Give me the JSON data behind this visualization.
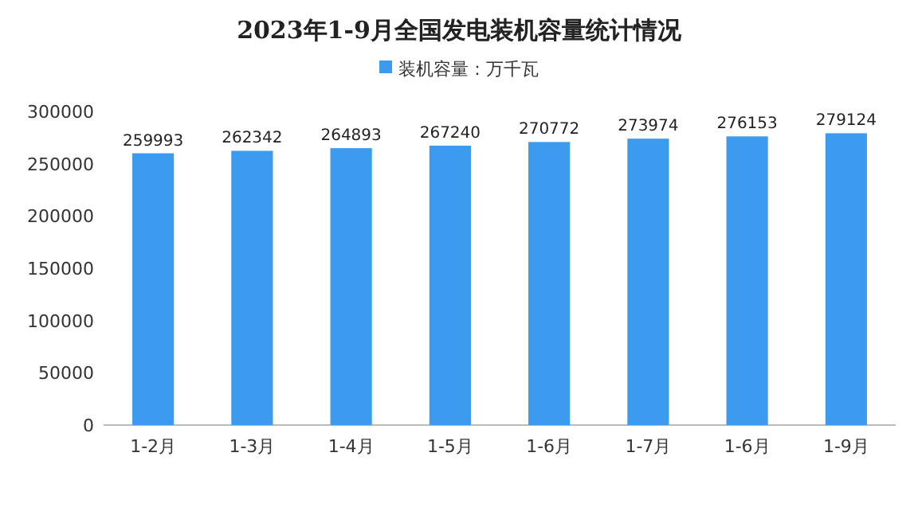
{
  "chart_data": {
    "type": "bar",
    "title": "2023年1-9月全国发电装机容量统计情况",
    "categories": [
      "1-2月",
      "1-3月",
      "1-4月",
      "1-5月",
      "1-6月",
      "1-7月",
      "1-6月",
      "1-9月"
    ],
    "series": [
      {
        "name": "装机容量：万千瓦",
        "color": "#3d9bef",
        "values": [
          259993,
          262342,
          264893,
          267240,
          270772,
          273974,
          276153,
          279124
        ]
      }
    ],
    "ylim": [
      0,
      300000
    ],
    "yticks": [
      0,
      50000,
      100000,
      150000,
      200000,
      250000,
      300000
    ],
    "data_labels": true,
    "legend": "top",
    "grid": false
  }
}
